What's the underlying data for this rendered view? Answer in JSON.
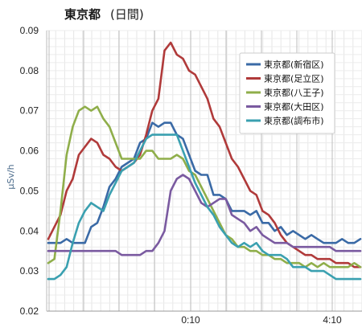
{
  "chart_data": {
    "type": "line",
    "title": "東京都",
    "subtitle": "(日間)",
    "xlabel": "",
    "ylabel": "μSv/h",
    "ylim": [
      0.02,
      0.09
    ],
    "yticks": [
      "0.02",
      "0.03",
      "0.04",
      "0.05",
      "0.06",
      "0.07",
      "0.08",
      "0.09"
    ],
    "xticks": [
      "0:10",
      "4:10"
    ],
    "grid": true,
    "legend_position": "top-right",
    "series": [
      {
        "name": "東京都(新宿区)",
        "color": "#3a6aa6",
        "values": [
          0.037,
          0.037,
          0.037,
          0.038,
          0.037,
          0.037,
          0.037,
          0.041,
          0.042,
          0.046,
          0.051,
          0.053,
          0.056,
          0.057,
          0.058,
          0.062,
          0.063,
          0.067,
          0.066,
          0.067,
          0.067,
          0.064,
          0.063,
          0.059,
          0.055,
          0.054,
          0.054,
          0.049,
          0.049,
          0.048,
          0.045,
          0.045,
          0.045,
          0.044,
          0.045,
          0.042,
          0.042,
          0.04,
          0.041,
          0.039,
          0.04,
          0.039,
          0.038,
          0.039,
          0.038,
          0.037,
          0.037,
          0.037,
          0.038,
          0.037,
          0.037,
          0.038
        ]
      },
      {
        "name": "東京都(足立区)",
        "color": "#b03a3a",
        "values": [
          0.038,
          0.041,
          0.044,
          0.05,
          0.053,
          0.059,
          0.061,
          0.063,
          0.062,
          0.059,
          0.058,
          0.056,
          0.055,
          0.056,
          0.057,
          0.059,
          0.064,
          0.07,
          0.073,
          0.085,
          0.087,
          0.084,
          0.083,
          0.08,
          0.079,
          0.076,
          0.073,
          0.068,
          0.066,
          0.062,
          0.058,
          0.056,
          0.053,
          0.05,
          0.049,
          0.045,
          0.044,
          0.042,
          0.039,
          0.037,
          0.036,
          0.035,
          0.034,
          0.034,
          0.033,
          0.033,
          0.033,
          0.032,
          0.032,
          0.032,
          0.031,
          0.031
        ]
      },
      {
        "name": "東京都(八王子)",
        "color": "#8fae4a",
        "values": [
          0.032,
          0.033,
          0.045,
          0.059,
          0.066,
          0.07,
          0.071,
          0.07,
          0.071,
          0.068,
          0.066,
          0.062,
          0.058,
          0.058,
          0.058,
          0.058,
          0.06,
          0.06,
          0.058,
          0.058,
          0.058,
          0.059,
          0.058,
          0.055,
          0.054,
          0.051,
          0.048,
          0.045,
          0.042,
          0.039,
          0.038,
          0.036,
          0.036,
          0.035,
          0.035,
          0.034,
          0.034,
          0.033,
          0.033,
          0.032,
          0.032,
          0.032,
          0.031,
          0.032,
          0.031,
          0.032,
          0.031,
          0.031,
          0.031,
          0.031,
          0.032,
          0.031
        ]
      },
      {
        "name": "東京都(大田区)",
        "color": "#7a5aa0",
        "values": [
          0.035,
          0.035,
          0.035,
          0.035,
          0.035,
          0.035,
          0.035,
          0.035,
          0.035,
          0.035,
          0.035,
          0.035,
          0.034,
          0.034,
          0.034,
          0.034,
          0.035,
          0.035,
          0.037,
          0.04,
          0.05,
          0.053,
          0.054,
          0.053,
          0.05,
          0.047,
          0.046,
          0.047,
          0.048,
          0.048,
          0.044,
          0.043,
          0.042,
          0.04,
          0.041,
          0.039,
          0.038,
          0.037,
          0.037,
          0.037,
          0.036,
          0.036,
          0.036,
          0.036,
          0.036,
          0.036,
          0.036,
          0.035,
          0.035,
          0.035,
          0.035,
          0.035
        ]
      },
      {
        "name": "東京都(調布市)",
        "color": "#3aa0b0",
        "values": [
          0.028,
          0.028,
          0.029,
          0.031,
          0.037,
          0.042,
          0.045,
          0.047,
          0.046,
          0.045,
          0.049,
          0.052,
          0.055,
          0.056,
          0.057,
          0.06,
          0.063,
          0.064,
          0.064,
          0.064,
          0.064,
          0.064,
          0.06,
          0.056,
          0.052,
          0.049,
          0.046,
          0.044,
          0.041,
          0.039,
          0.037,
          0.036,
          0.037,
          0.036,
          0.037,
          0.035,
          0.034,
          0.034,
          0.034,
          0.033,
          0.031,
          0.031,
          0.031,
          0.03,
          0.03,
          0.03,
          0.029,
          0.028,
          0.028,
          0.028,
          0.028,
          0.028
        ]
      }
    ]
  }
}
